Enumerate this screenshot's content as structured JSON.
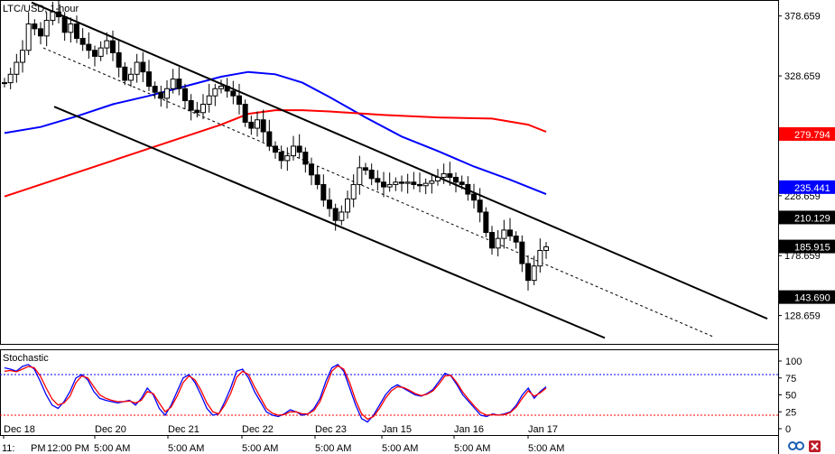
{
  "window": {
    "title": "LTC/USD, 1-hour"
  },
  "chart_data": [
    {
      "type": "candlestick",
      "title": "LTC/USD, 1-hour",
      "ylim": [
        105,
        392
      ],
      "y_ticks": [
        128.659,
        178.659,
        228.659,
        328.659,
        378.659
      ],
      "x_ticks": [
        "Dec 18",
        "Dec 20",
        "Dec 21",
        "Dec 22",
        "Dec 23",
        "Jan 15",
        "Jan 16",
        "Jan 17"
      ],
      "x_ticks_bottom": [
        "11:",
        "PM",
        "12:00 PM",
        "5:00 AM",
        "5:00 AM",
        "5:00 AM",
        "5:00 AM",
        "5:00 AM",
        "5:00 AM",
        "5:00 AM"
      ],
      "price_labels": [
        {
          "value": 279.794,
          "text": "279.794",
          "color": "#ff0000"
        },
        {
          "value": 235.441,
          "text": "235.441",
          "color": "#0000ff"
        },
        {
          "value": 210.129,
          "text": "210.129",
          "color": "#ffffff"
        },
        {
          "value": 185.915,
          "text": "185.915",
          "color": "#ffffff"
        },
        {
          "value": 143.69,
          "text": "143.690",
          "color": "#ffffff"
        }
      ],
      "close_prices": [
        323,
        330,
        340,
        350,
        372,
        368,
        362,
        375,
        382,
        378,
        365,
        372,
        360,
        355,
        350,
        345,
        352,
        358,
        348,
        336,
        325,
        330,
        340,
        332,
        320,
        315,
        310,
        318,
        326,
        318,
        308,
        300,
        298,
        305,
        312,
        318,
        320,
        316,
        312,
        305,
        290,
        285,
        292,
        282,
        270,
        265,
        258,
        262,
        270,
        265,
        255,
        246,
        238,
        225,
        218,
        208,
        215,
        226,
        238,
        252,
        250,
        243,
        240,
        236,
        238,
        240,
        239,
        240,
        238,
        237,
        239,
        241,
        244,
        247,
        244,
        240,
        238,
        230,
        225,
        215,
        198,
        185,
        193,
        200,
        195,
        190,
        172,
        158,
        170,
        183,
        186
      ],
      "moving_averages": [
        {
          "color": "#0000ff",
          "points": [
            [
              0,
              281
            ],
            [
              40,
              286
            ],
            [
              80,
              295
            ],
            [
              120,
              305
            ],
            [
              160,
              312
            ],
            [
              200,
              320
            ],
            [
              240,
              328
            ],
            [
              270,
              332
            ],
            [
              300,
              330
            ],
            [
              330,
              323
            ],
            [
              360,
              311
            ],
            [
              400,
              294
            ],
            [
              440,
              278
            ],
            [
              480,
              266
            ],
            [
              520,
              253
            ],
            [
              560,
              242
            ],
            [
              600,
              230
            ]
          ]
        },
        {
          "color": "#ff0000",
          "points": [
            [
              0,
              228
            ],
            [
              40,
              238
            ],
            [
              80,
              248
            ],
            [
              120,
              258
            ],
            [
              160,
              268
            ],
            [
              200,
              278
            ],
            [
              240,
              288
            ],
            [
              270,
              297
            ],
            [
              300,
              300
            ],
            [
              330,
              300
            ],
            [
              360,
              299
            ],
            [
              420,
              296
            ],
            [
              480,
              294
            ],
            [
              540,
              293
            ],
            [
              580,
              288
            ],
            [
              600,
              282
            ]
          ]
        }
      ],
      "trend_channel": [
        {
          "style": "solid",
          "from": [
            35,
            390
          ],
          "to": [
            850,
            126
          ]
        },
        {
          "style": "solid",
          "from": [
            60,
            303
          ],
          "to": [
            670,
            110
          ]
        },
        {
          "style": "dashed",
          "from": [
            48,
            352
          ],
          "to": [
            790,
            111
          ]
        }
      ]
    },
    {
      "type": "line",
      "title": "Stochastic",
      "ylim": [
        0,
        100
      ],
      "y_ticks": [
        0,
        25,
        50,
        75,
        100
      ],
      "levels": [
        {
          "value": 80,
          "color": "#0000ff"
        },
        {
          "value": 20,
          "color": "#ff0000"
        }
      ],
      "series": [
        {
          "color": "#0000ff",
          "values": [
            90,
            88,
            85,
            92,
            95,
            88,
            70,
            50,
            35,
            30,
            40,
            55,
            75,
            80,
            72,
            55,
            45,
            42,
            40,
            38,
            40,
            42,
            35,
            45,
            60,
            50,
            30,
            20,
            35,
            55,
            75,
            80,
            68,
            50,
            30,
            20,
            22,
            40,
            60,
            85,
            88,
            75,
            55,
            40,
            25,
            20,
            18,
            22,
            28,
            25,
            20,
            22,
            30,
            45,
            70,
            90,
            95,
            85,
            60,
            35,
            15,
            10,
            20,
            35,
            50,
            60,
            65,
            60,
            55,
            50,
            48,
            52,
            58,
            70,
            82,
            78,
            65,
            50,
            40,
            30,
            20,
            18,
            22,
            20,
            22,
            25,
            35,
            50,
            60,
            45,
            55,
            62
          ]
        },
        {
          "color": "#ff0000",
          "values": [
            85,
            86,
            84,
            88,
            92,
            90,
            78,
            60,
            44,
            35,
            38,
            48,
            68,
            78,
            75,
            62,
            50,
            45,
            42,
            40,
            40,
            41,
            38,
            42,
            55,
            52,
            38,
            25,
            32,
            48,
            68,
            78,
            72,
            57,
            38,
            25,
            22,
            35,
            52,
            76,
            85,
            80,
            62,
            46,
            30,
            23,
            20,
            21,
            25,
            25,
            22,
            22,
            27,
            40,
            62,
            85,
            93,
            88,
            68,
            42,
            22,
            14,
            18,
            30,
            45,
            56,
            62,
            61,
            57,
            52,
            49,
            51,
            56,
            66,
            78,
            79,
            68,
            54,
            43,
            33,
            24,
            20,
            21,
            20,
            21,
            24,
            32,
            45,
            56,
            48,
            53,
            60
          ]
        }
      ]
    }
  ]
}
